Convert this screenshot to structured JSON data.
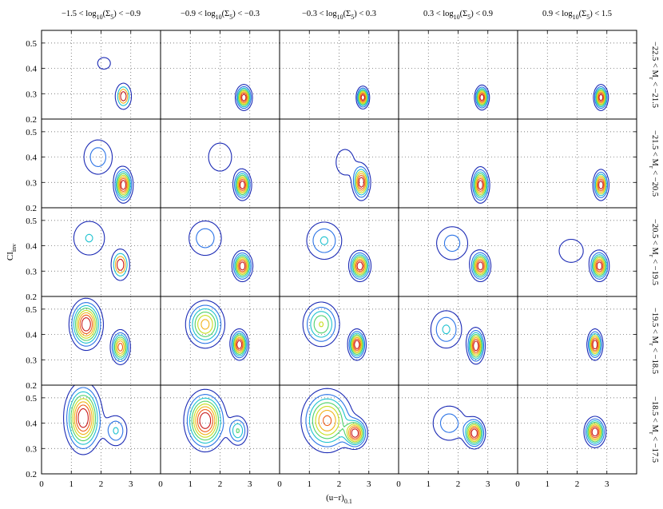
{
  "chart_data": {
    "type": "contour",
    "description_levels": "Contour density maps of inverse concentration index vs (u-r) colour, binned by local density (columns) and absolute magnitude (rows).",
    "x_label": "(u−r)",
    "x_label_sub": "0.1",
    "y_label": "CI",
    "y_label_sub": "inv",
    "xlim": [
      0,
      4
    ],
    "ylim": [
      0.2,
      0.55
    ],
    "x_ticks": [
      0,
      1,
      2,
      3
    ],
    "y_ticks": [
      0.2,
      0.3,
      0.4,
      0.5
    ],
    "grid": "dotted",
    "contour_colors": [
      "#1c2bb5",
      "#2c74e6",
      "#1fc2d0",
      "#4fd26b",
      "#c7de1f",
      "#f2b21b",
      "#ee5e1a",
      "#c81a1a"
    ],
    "columns": [
      {
        "pre": "−1.5 < log",
        "sub1": "10",
        "mid": "(Σ",
        "sub2": "5",
        "post": ") < −0.9"
      },
      {
        "pre": "−0.9 < log",
        "sub1": "10",
        "mid": "(Σ",
        "sub2": "5",
        "post": ") < −0.3"
      },
      {
        "pre": "−0.3 < log",
        "sub1": "10",
        "mid": "(Σ",
        "sub2": "5",
        "post": ") < 0.3"
      },
      {
        "pre": "0.3 < log",
        "sub1": "10",
        "mid": "(Σ",
        "sub2": "5",
        "post": ") < 0.9"
      },
      {
        "pre": "0.9 < log",
        "sub1": "10",
        "mid": "(Σ",
        "sub2": "5",
        "post": ") < 1.5"
      }
    ],
    "rows": [
      {
        "pre": "−22.5 < M",
        "sub": "r",
        "post": " < −21.5"
      },
      {
        "pre": "−21.5 < M",
        "sub": "r",
        "post": " < −20.5"
      },
      {
        "pre": "−20.5 < M",
        "sub": "r",
        "post": " < −19.5"
      },
      {
        "pre": "−19.5 < M",
        "sub": "r",
        "post": " < −18.5"
      },
      {
        "pre": "−18.5 < M",
        "sub": "r",
        "post": " < −17.5"
      }
    ],
    "panels": [
      [
        {
          "peaks": [
            {
              "x": 2.75,
              "y": 0.29,
              "sx": 0.13,
              "sy": 0.025,
              "w": 1.0
            }
          ],
          "levels": 4,
          "extra": [
            {
              "x": 2.1,
              "y": 0.42,
              "sx": 0.28,
              "sy": 0.03
            }
          ]
        },
        {
          "peaks": [
            {
              "x": 2.8,
              "y": 0.285,
              "sx": 0.14,
              "sy": 0.025,
              "w": 1.0
            }
          ],
          "levels": 8
        },
        {
          "peaks": [
            {
              "x": 2.8,
              "y": 0.285,
              "sx": 0.11,
              "sy": 0.022,
              "w": 1.0
            }
          ],
          "levels": 8
        },
        {
          "peaks": [
            {
              "x": 2.8,
              "y": 0.285,
              "sx": 0.12,
              "sy": 0.024,
              "w": 1.0
            }
          ],
          "levels": 8
        },
        {
          "peaks": [
            {
              "x": 2.8,
              "y": 0.285,
              "sx": 0.12,
              "sy": 0.025,
              "w": 1.0
            }
          ],
          "levels": 8
        }
      ],
      [
        {
          "peaks": [
            {
              "x": 2.75,
              "y": 0.29,
              "sx": 0.16,
              "sy": 0.035,
              "w": 1.0
            },
            {
              "x": 1.9,
              "y": 0.4,
              "sx": 0.35,
              "sy": 0.05,
              "w": 0.3
            }
          ],
          "levels": 8
        },
        {
          "peaks": [
            {
              "x": 2.75,
              "y": 0.29,
              "sx": 0.15,
              "sy": 0.03,
              "w": 1.0
            },
            {
              "x": 2.0,
              "y": 0.4,
              "sx": 0.35,
              "sy": 0.05,
              "w": 0.22
            }
          ],
          "levels": 8
        },
        {
          "peaks": [
            {
              "x": 2.75,
              "y": 0.3,
              "sx": 0.15,
              "sy": 0.035,
              "w": 1.0
            },
            {
              "x": 2.2,
              "y": 0.38,
              "sx": 0.3,
              "sy": 0.05,
              "w": 0.2
            }
          ],
          "levels": 7
        },
        {
          "peaks": [
            {
              "x": 2.75,
              "y": 0.29,
              "sx": 0.15,
              "sy": 0.035,
              "w": 1.0
            }
          ],
          "levels": 8
        },
        {
          "peaks": [
            {
              "x": 2.8,
              "y": 0.29,
              "sx": 0.13,
              "sy": 0.03,
              "w": 1.0
            }
          ],
          "levels": 7
        }
      ],
      [
        {
          "peaks": [
            {
              "x": 2.65,
              "y": 0.325,
              "sx": 0.15,
              "sy": 0.03,
              "w": 1.0
            },
            {
              "x": 1.6,
              "y": 0.43,
              "sx": 0.35,
              "sy": 0.045,
              "w": 0.35
            }
          ],
          "levels": 4
        },
        {
          "peaks": [
            {
              "x": 2.75,
              "y": 0.32,
              "sx": 0.17,
              "sy": 0.03,
              "w": 1.0
            },
            {
              "x": 1.5,
              "y": 0.43,
              "sx": 0.4,
              "sy": 0.05,
              "w": 0.3
            }
          ],
          "levels": 8
        },
        {
          "peaks": [
            {
              "x": 2.7,
              "y": 0.32,
              "sx": 0.18,
              "sy": 0.03,
              "w": 1.0
            },
            {
              "x": 1.5,
              "y": 0.42,
              "sx": 0.4,
              "sy": 0.05,
              "w": 0.35
            }
          ],
          "levels": 8
        },
        {
          "peaks": [
            {
              "x": 2.75,
              "y": 0.32,
              "sx": 0.17,
              "sy": 0.03,
              "w": 1.0
            },
            {
              "x": 1.8,
              "y": 0.41,
              "sx": 0.4,
              "sy": 0.05,
              "w": 0.28
            }
          ],
          "levels": 8
        },
        {
          "peaks": [
            {
              "x": 2.75,
              "y": 0.32,
              "sx": 0.16,
              "sy": 0.03,
              "w": 1.0
            },
            {
              "x": 1.8,
              "y": 0.38,
              "sx": 0.4,
              "sy": 0.045,
              "w": 0.2
            }
          ],
          "levels": 8
        }
      ],
      [
        {
          "peaks": [
            {
              "x": 1.5,
              "y": 0.44,
              "sx": 0.28,
              "sy": 0.05,
              "w": 1.0
            },
            {
              "x": 2.65,
              "y": 0.35,
              "sx": 0.17,
              "sy": 0.035,
              "w": 0.85
            }
          ],
          "levels": 8
        },
        {
          "peaks": [
            {
              "x": 1.5,
              "y": 0.44,
              "sx": 0.35,
              "sy": 0.05,
              "w": 0.7
            },
            {
              "x": 2.65,
              "y": 0.36,
              "sx": 0.15,
              "sy": 0.03,
              "w": 1.0
            }
          ],
          "levels": 8
        },
        {
          "peaks": [
            {
              "x": 1.4,
              "y": 0.44,
              "sx": 0.35,
              "sy": 0.05,
              "w": 0.55
            },
            {
              "x": 2.6,
              "y": 0.36,
              "sx": 0.15,
              "sy": 0.03,
              "w": 1.0
            }
          ],
          "levels": 8
        },
        {
          "peaks": [
            {
              "x": 1.6,
              "y": 0.42,
              "sx": 0.35,
              "sy": 0.05,
              "w": 0.35
            },
            {
              "x": 2.6,
              "y": 0.355,
              "sx": 0.15,
              "sy": 0.035,
              "w": 1.0
            }
          ],
          "levels": 8
        },
        {
          "peaks": [
            {
              "x": 2.6,
              "y": 0.36,
              "sx": 0.13,
              "sy": 0.03,
              "w": 1.0
            }
          ],
          "levels": 7
        }
      ],
      [
        {
          "peaks": [
            {
              "x": 1.4,
              "y": 0.42,
              "sx": 0.32,
              "sy": 0.07,
              "w": 1.0
            },
            {
              "x": 2.5,
              "y": 0.37,
              "sx": 0.25,
              "sy": 0.04,
              "w": 0.35
            }
          ],
          "levels": 8
        },
        {
          "peaks": [
            {
              "x": 1.5,
              "y": 0.41,
              "sx": 0.35,
              "sy": 0.06,
              "w": 1.0
            },
            {
              "x": 2.6,
              "y": 0.37,
              "sx": 0.2,
              "sy": 0.035,
              "w": 0.45
            }
          ],
          "levels": 8
        },
        {
          "peaks": [
            {
              "x": 1.6,
              "y": 0.41,
              "sx": 0.45,
              "sy": 0.065,
              "w": 0.85
            },
            {
              "x": 2.55,
              "y": 0.36,
              "sx": 0.2,
              "sy": 0.03,
              "w": 1.0
            }
          ],
          "levels": 8
        },
        {
          "peaks": [
            {
              "x": 2.55,
              "y": 0.36,
              "sx": 0.18,
              "sy": 0.03,
              "w": 1.0
            },
            {
              "x": 1.7,
              "y": 0.4,
              "sx": 0.4,
              "sy": 0.05,
              "w": 0.3
            }
          ],
          "levels": 8
        },
        {
          "peaks": [
            {
              "x": 2.6,
              "y": 0.365,
              "sx": 0.18,
              "sy": 0.03,
              "w": 1.0
            }
          ],
          "levels": 8
        }
      ]
    ]
  }
}
